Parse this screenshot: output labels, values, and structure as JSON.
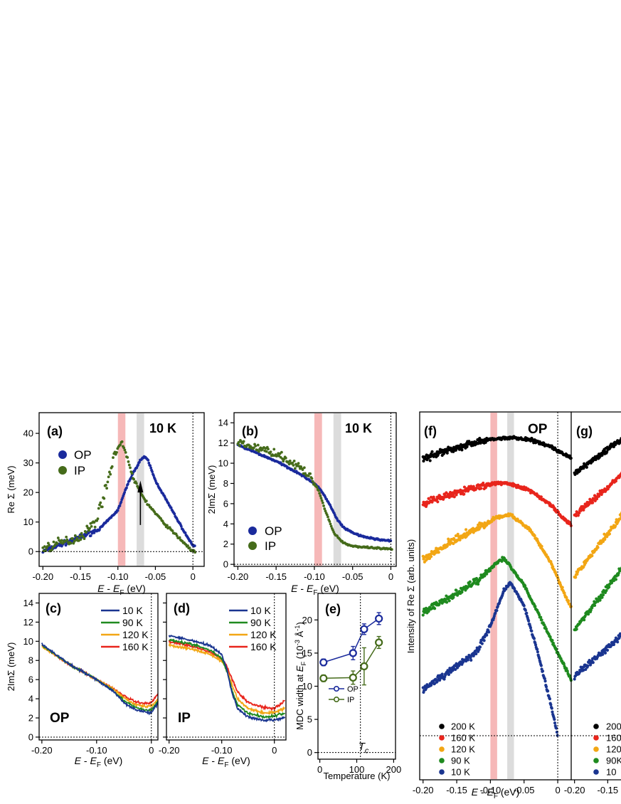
{
  "colors": {
    "op": "#1a2a9c",
    "ip": "#456b1a",
    "red_band": "#f6b8b8",
    "gray_band": "#dcdcdc",
    "t10": "#1a3590",
    "t90": "#1f8a1f",
    "t120": "#f2a614",
    "t160": "#e8251c",
    "t200": "#000000"
  },
  "chart_data": [
    {
      "panel": "(a)",
      "type": "scatter",
      "corner_label": "10 K",
      "xlabel_parts": [
        "E - E",
        "F",
        " (eV)"
      ],
      "ylabel": "Re Σ (meV)",
      "xlim": [
        -0.205,
        0.015
      ],
      "ylim": [
        -5,
        47
      ],
      "xticks": [
        -0.2,
        -0.15,
        -0.1,
        -0.05,
        0
      ],
      "xtick_labels": [
        "-0.20",
        "-0.15",
        "-0.10",
        "-0.05",
        "0"
      ],
      "yticks": [
        0,
        10,
        20,
        30,
        40
      ],
      "ytick_labels": [
        "0",
        "10",
        "20",
        "30",
        "40"
      ],
      "bands": [
        {
          "x": [
            -0.1,
            -0.09
          ],
          "color": "red"
        },
        {
          "x": [
            -0.075,
            -0.065
          ],
          "color": "gray"
        }
      ],
      "series": [
        {
          "name": "OP",
          "x": [
            -0.2,
            -0.15,
            -0.125,
            -0.1,
            -0.085,
            -0.07,
            -0.065,
            -0.06,
            -0.05,
            -0.03,
            -0.01,
            0.0
          ],
          "y": [
            0,
            5,
            7.5,
            14,
            24,
            31,
            32,
            31,
            24,
            15,
            6,
            2
          ]
        },
        {
          "name": "IP",
          "x": [
            -0.2,
            -0.175,
            -0.15,
            -0.13,
            -0.115,
            -0.105,
            -0.095,
            -0.09,
            -0.08,
            -0.07,
            -0.06,
            -0.04,
            -0.02,
            0.0
          ],
          "y": [
            1,
            3,
            5,
            10,
            22,
            33,
            37,
            34,
            25,
            20,
            16,
            10,
            5,
            0
          ]
        }
      ],
      "annotations": [
        "arrow up at E=-0.07"
      ]
    },
    {
      "panel": "(b)",
      "type": "scatter",
      "corner_label": "10 K",
      "xlabel_parts": [
        "E - E",
        "F",
        " (eV)"
      ],
      "ylabel": "2ImΣ (meV)",
      "xlim": [
        -0.205,
        0.007
      ],
      "ylim": [
        -0.2,
        15
      ],
      "xticks": [
        -0.2,
        -0.15,
        -0.1,
        -0.05,
        0
      ],
      "xtick_labels": [
        "-0.20",
        "-0.15",
        "-0.10",
        "-0.05",
        "0"
      ],
      "yticks": [
        0,
        2,
        4,
        6,
        8,
        10,
        12,
        14
      ],
      "ytick_labels": [
        "0",
        "2",
        "4",
        "6",
        "8",
        "10",
        "12",
        "14"
      ],
      "bands": [
        {
          "x": [
            -0.1,
            -0.09
          ],
          "color": "red"
        },
        {
          "x": [
            -0.075,
            -0.065
          ],
          "color": "gray"
        }
      ],
      "series": [
        {
          "name": "OP",
          "x": [
            -0.2,
            -0.15,
            -0.12,
            -0.1,
            -0.09,
            -0.08,
            -0.07,
            -0.06,
            -0.04,
            -0.02,
            0.0
          ],
          "y": [
            11.8,
            10.2,
            9.0,
            8.0,
            7.2,
            5.9,
            4.4,
            3.5,
            2.8,
            2.5,
            2.3
          ]
        },
        {
          "name": "IP",
          "x": [
            -0.2,
            -0.15,
            -0.12,
            -0.105,
            -0.095,
            -0.085,
            -0.075,
            -0.065,
            -0.055,
            -0.04,
            -0.02,
            0.0
          ],
          "y": [
            12.0,
            11.0,
            9.6,
            8.6,
            7.4,
            5.2,
            3.2,
            2.3,
            1.9,
            1.7,
            1.6,
            1.5
          ]
        }
      ]
    },
    {
      "panel": "(c)",
      "type": "line",
      "corner_label": "OP",
      "xlabel_parts": [
        "E - E",
        "F",
        " (eV)"
      ],
      "ylabel": "2ImΣ (meV)",
      "xlim": [
        -0.205,
        0.012
      ],
      "ylim": [
        -0.3,
        15
      ],
      "xticks": [
        -0.2,
        -0.1,
        0
      ],
      "xtick_labels": [
        "-0.20",
        "-0.10",
        "0"
      ],
      "yticks": [
        0,
        2,
        4,
        6,
        8,
        10,
        12,
        14
      ],
      "ytick_labels": [
        "0",
        "2",
        "4",
        "6",
        "8",
        "10",
        "12",
        "14"
      ],
      "series": [
        {
          "name": "10 K",
          "x": [
            -0.2,
            -0.15,
            -0.1,
            -0.07,
            -0.05,
            -0.03,
            -0.01,
            0.0,
            0.012
          ],
          "y": [
            9.7,
            7.6,
            6.0,
            4.8,
            3.6,
            2.9,
            2.6,
            2.5,
            3.6
          ]
        },
        {
          "name": "90 K",
          "x": [
            -0.2,
            -0.15,
            -0.1,
            -0.07,
            -0.05,
            -0.03,
            -0.01,
            0.0,
            0.012
          ],
          "y": [
            9.6,
            7.6,
            6.0,
            4.9,
            3.8,
            3.1,
            2.8,
            2.8,
            3.8
          ]
        },
        {
          "name": "120 K",
          "x": [
            -0.2,
            -0.15,
            -0.1,
            -0.07,
            -0.05,
            -0.03,
            -0.01,
            0.0,
            0.012
          ],
          "y": [
            9.5,
            7.6,
            6.0,
            5.0,
            4.1,
            3.4,
            3.2,
            3.2,
            4.0
          ]
        },
        {
          "name": "160 K",
          "x": [
            -0.2,
            -0.15,
            -0.1,
            -0.07,
            -0.05,
            -0.03,
            -0.01,
            0.0,
            0.012
          ],
          "y": [
            9.5,
            7.6,
            6.0,
            5.1,
            4.3,
            3.7,
            3.5,
            3.6,
            4.5
          ]
        }
      ]
    },
    {
      "panel": "(d)",
      "type": "line",
      "corner_label": "IP",
      "xlabel_parts": [
        "E - E",
        "F",
        " (eV)"
      ],
      "ylabel": "",
      "xlim": [
        -0.205,
        0.022
      ],
      "ylim": [
        -0.3,
        15
      ],
      "xticks": [
        -0.2,
        -0.1,
        0
      ],
      "xtick_labels": [
        "-0.20",
        "-0.10",
        "0"
      ],
      "yticks": [
        0,
        2,
        4,
        6,
        8,
        10,
        12,
        14
      ],
      "series": [
        {
          "name": "10 K",
          "x": [
            -0.2,
            -0.15,
            -0.12,
            -0.1,
            -0.09,
            -0.08,
            -0.07,
            -0.05,
            -0.02,
            0.0,
            0.02
          ],
          "y": [
            10.6,
            10.0,
            9.5,
            8.6,
            7.0,
            4.5,
            3.0,
            2.1,
            1.7,
            1.8,
            2.0
          ]
        },
        {
          "name": "90 K",
          "x": [
            -0.2,
            -0.15,
            -0.12,
            -0.1,
            -0.09,
            -0.08,
            -0.07,
            -0.05,
            -0.02,
            0.0,
            0.02
          ],
          "y": [
            10.2,
            9.6,
            9.0,
            8.2,
            6.9,
            4.8,
            3.4,
            2.5,
            2.1,
            2.2,
            2.5
          ]
        },
        {
          "name": "120 K",
          "x": [
            -0.2,
            -0.15,
            -0.12,
            -0.1,
            -0.09,
            -0.08,
            -0.07,
            -0.05,
            -0.02,
            0.0,
            0.02
          ],
          "y": [
            9.6,
            9.1,
            8.6,
            7.9,
            7.0,
            5.4,
            4.0,
            3.0,
            2.5,
            2.6,
            3.0
          ]
        },
        {
          "name": "160 K",
          "x": [
            -0.2,
            -0.15,
            -0.12,
            -0.1,
            -0.09,
            -0.08,
            -0.07,
            -0.05,
            -0.02,
            0.0,
            0.02
          ],
          "y": [
            10.0,
            9.4,
            8.8,
            8.1,
            7.3,
            6.0,
            4.7,
            3.6,
            3.1,
            3.0,
            3.8
          ]
        }
      ]
    },
    {
      "panel": "(e)",
      "type": "line",
      "xlabel": "Temperature (K)",
      "ylabel_parts": [
        "MDC width at E",
        "F",
        " (10",
        "-3",
        " Å",
        "-1",
        ")"
      ],
      "xlim": [
        -5,
        205
      ],
      "ylim": [
        -1,
        24
      ],
      "xticks": [
        0,
        100,
        200
      ],
      "xtick_labels": [
        "0",
        "100",
        "200"
      ],
      "yticks": [
        0,
        5,
        10,
        15,
        20
      ],
      "ytick_labels": [
        "0",
        "5",
        "10",
        "15",
        "20"
      ],
      "tc_label": "T",
      "tc_sub": "c",
      "tc_value": 110,
      "series": [
        {
          "name": "OP",
          "x": [
            10,
            90,
            120,
            160
          ],
          "y": [
            13.6,
            15.0,
            18.6,
            20.2
          ],
          "err": [
            0.5,
            1.0,
            0.8,
            0.9
          ]
        },
        {
          "name": "IP",
          "x": [
            10,
            90,
            120,
            160
          ],
          "y": [
            11.2,
            11.3,
            13.0,
            16.6
          ],
          "err": [
            0.5,
            1.0,
            2.8,
            0.9
          ]
        }
      ]
    },
    {
      "panel": "(f)",
      "type": "scatter",
      "corner_label": "OP",
      "xlabel_parts": [
        "E - E",
        "F",
        " (eV)"
      ],
      "ylabel": "Intensity of Re Σ (arb. units)",
      "xlim": [
        -0.205,
        0.02
      ],
      "xticks": [
        -0.2,
        -0.15,
        -0.1,
        -0.05,
        0
      ],
      "xtick_labels": [
        "-0.20",
        "-0.15",
        "-0.10",
        "-0.05",
        "0"
      ],
      "bands": [
        {
          "x": [
            -0.1,
            -0.09
          ],
          "color": "red"
        },
        {
          "x": [
            -0.075,
            -0.065
          ],
          "color": "gray"
        }
      ],
      "series": [
        {
          "name": "200 K",
          "x": [
            -0.2,
            -0.16,
            -0.12,
            -0.09,
            -0.07,
            -0.04,
            -0.01,
            0.01,
            0.02
          ],
          "y": [
            0.65,
            0.8,
            0.92,
            0.98,
            1.0,
            0.96,
            0.85,
            0.72,
            0.66
          ]
        },
        {
          "name": "160 K",
          "x": [
            -0.2,
            -0.16,
            -0.12,
            -0.09,
            -0.07,
            -0.04,
            -0.01,
            0.01,
            0.02
          ],
          "y": [
            0.62,
            0.75,
            0.86,
            0.91,
            0.9,
            0.8,
            0.6,
            0.4,
            0.32
          ]
        },
        {
          "name": "120 K",
          "x": [
            -0.2,
            -0.16,
            -0.12,
            -0.09,
            -0.07,
            -0.04,
            -0.01,
            0.01,
            0.02
          ],
          "y": [
            0.58,
            0.72,
            0.84,
            0.93,
            0.95,
            0.82,
            0.55,
            0.3,
            0.18
          ]
        },
        {
          "name": "90 K",
          "x": [
            -0.2,
            -0.16,
            -0.12,
            -0.09,
            -0.08,
            -0.05,
            -0.02,
            0.0,
            0.02
          ],
          "y": [
            0.55,
            0.66,
            0.78,
            0.92,
            0.95,
            0.75,
            0.45,
            0.25,
            0.05
          ]
        },
        {
          "name": "10 K",
          "x": [
            -0.2,
            -0.15,
            -0.12,
            -0.1,
            -0.08,
            -0.07,
            -0.05,
            -0.03,
            -0.01,
            0.0
          ],
          "y": [
            0.3,
            0.45,
            0.55,
            0.72,
            0.95,
            1.0,
            0.85,
            0.55,
            0.2,
            0.0
          ]
        }
      ]
    },
    {
      "panel": "(g)",
      "type": "scatter",
      "xtick_labels": [
        "-0.20",
        "-0.15"
      ],
      "legend_labels": [
        "200",
        "160",
        "120",
        "90K",
        "10"
      ]
    }
  ]
}
